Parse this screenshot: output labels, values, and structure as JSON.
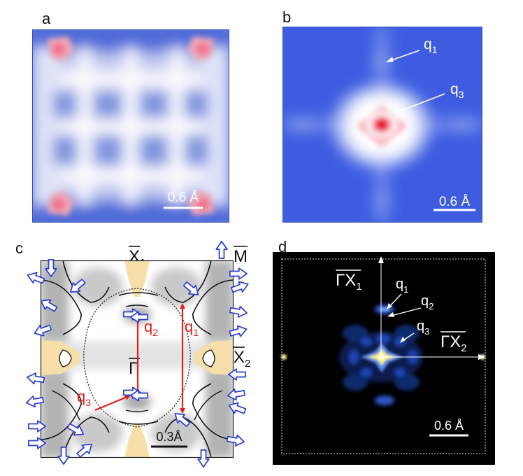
{
  "panels": {
    "a": {
      "letter": "a",
      "scale_label": "0.6 Å"
    },
    "b": {
      "letter": "b",
      "scale_label": "0.6 Å",
      "q1": "q",
      "q1_sub": "1",
      "q3": "q",
      "q3_sub": "3"
    },
    "c": {
      "letter": "c",
      "scale_label": "0.3Å",
      "x1": "X",
      "x1_sub": "1",
      "x2": "X",
      "x2_sub": "2",
      "m": "M",
      "gamma": "Γ",
      "q1": "q",
      "q1_sub": "1",
      "q2": "q",
      "q2_sub": "2",
      "q3": "q",
      "q3_sub": "3"
    },
    "d": {
      "letter": "d",
      "scale_label": "0.6 Å",
      "gx1": "ΓX",
      "gx1_sub": "1",
      "gx2": "ΓX",
      "gx2_sub": "2",
      "q1": "q",
      "q1_sub": "1",
      "q2": "q",
      "q2_sub": "2",
      "q3": "q",
      "q3_sub": "3"
    }
  },
  "colors": {
    "blue": "#4a67d6",
    "red": "#e0201a",
    "arrow_blue": "#2b3fd6",
    "pocket": "#f6dfa9"
  }
}
